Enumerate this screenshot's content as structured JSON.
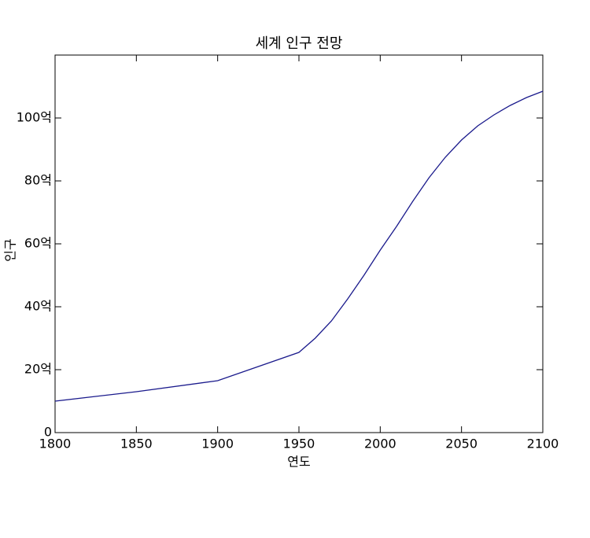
{
  "chart_data": {
    "type": "line",
    "title": "세계 인구 전망",
    "x_label": "연도",
    "y_label": "인구",
    "x": [
      1800,
      1850,
      1900,
      1950,
      1960,
      1970,
      1980,
      1990,
      2000,
      2010,
      2020,
      2030,
      2040,
      2050,
      2060,
      2070,
      2080,
      2090,
      2100
    ],
    "series": [
      {
        "color": "#1a1a8c",
        "values": [
          10,
          13,
          16.5,
          25.5,
          30,
          35.5,
          42.5,
          50,
          58,
          65.5,
          73.5,
          81,
          87.5,
          93,
          97.5,
          101,
          104,
          106.5,
          108.5
        ]
      }
    ],
    "xlim": [
      1800,
      2100
    ],
    "xticks": [
      1800,
      1850,
      1900,
      1950,
      2000,
      2050,
      2100
    ],
    "ylim": [
      0,
      120
    ],
    "yticks": [
      0,
      {
        "value": 20,
        "label": "20억"
      },
      {
        "value": 40,
        "label": "40억"
      },
      {
        "value": 60,
        "label": "60억"
      },
      {
        "value": 80,
        "label": "80억"
      },
      {
        "value": 100,
        "label": "100억"
      }
    ],
    "grid": false
  }
}
